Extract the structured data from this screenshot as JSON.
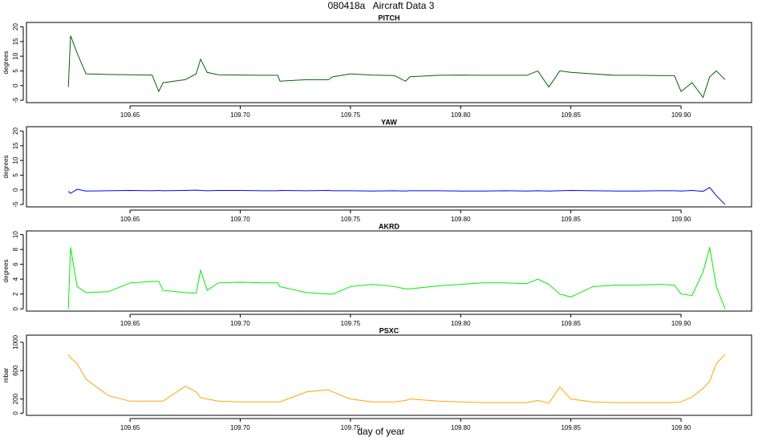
{
  "title": "080418a   Aircraft Data 3",
  "xlabel": "day of year",
  "chart_data": [
    {
      "type": "line",
      "title": "PITCH",
      "ylabel": "degrees",
      "color": "#006400",
      "xlim": [
        109.603,
        109.932
      ],
      "xticks": [
        109.65,
        {
          "value": 109.7,
          "label": "109.70"
        },
        109.75,
        {
          "value": 109.8,
          "label": "109.80"
        },
        109.85,
        {
          "value": 109.9,
          "label": "109.90"
        }
      ],
      "ylim": [
        -5.8,
        21.5
      ],
      "yticks": [
        -5,
        0,
        5,
        10,
        15,
        20
      ],
      "x": [
        109.622,
        109.623,
        109.626,
        109.63,
        109.64,
        109.65,
        109.66,
        109.663,
        109.665,
        109.675,
        109.68,
        109.682,
        109.685,
        109.69,
        109.7,
        109.71,
        109.717,
        109.718,
        109.73,
        109.74,
        109.742,
        109.75,
        109.76,
        109.77,
        109.775,
        109.777,
        109.79,
        109.8,
        109.81,
        109.82,
        109.83,
        109.835,
        109.84,
        109.845,
        109.85,
        109.86,
        109.87,
        109.88,
        109.89,
        109.897,
        109.9,
        109.905,
        109.91,
        109.913,
        109.916,
        109.92
      ],
      "values": [
        -0.5,
        17,
        11,
        4,
        3.8,
        3.7,
        3.6,
        -2,
        1,
        2,
        4,
        9,
        4.5,
        3.7,
        3.6,
        3.5,
        3.5,
        1.5,
        2,
        2,
        3,
        4,
        3.6,
        3.4,
        1.5,
        3,
        3.5,
        3.6,
        3.5,
        3.5,
        3.5,
        5,
        -0.5,
        5,
        4.5,
        4,
        3.5,
        3.5,
        3.4,
        3.4,
        -2,
        1,
        -4,
        3,
        5,
        2
      ]
    },
    {
      "type": "line",
      "title": "YAW",
      "ylabel": "degrees",
      "color": "#0000ff",
      "xlim": [
        109.603,
        109.932
      ],
      "xticks": [
        109.65,
        {
          "value": 109.7,
          "label": "109.70"
        },
        109.75,
        {
          "value": 109.8,
          "label": "109.80"
        },
        109.85,
        {
          "value": 109.9,
          "label": "109.90"
        }
      ],
      "ylim": [
        -5.8,
        21.5
      ],
      "yticks": [
        -5,
        0,
        5,
        10,
        15,
        20
      ],
      "x": [
        109.622,
        109.623,
        109.626,
        109.63,
        109.64,
        109.65,
        109.66,
        109.663,
        109.665,
        109.675,
        109.68,
        109.682,
        109.685,
        109.69,
        109.7,
        109.71,
        109.717,
        109.718,
        109.73,
        109.74,
        109.742,
        109.75,
        109.76,
        109.77,
        109.775,
        109.777,
        109.79,
        109.8,
        109.81,
        109.82,
        109.83,
        109.835,
        109.84,
        109.845,
        109.85,
        109.86,
        109.87,
        109.88,
        109.89,
        109.897,
        109.9,
        109.905,
        109.91,
        109.913,
        109.916,
        109.92
      ],
      "values": [
        -0.5,
        -1.2,
        0.2,
        -0.4,
        -0.3,
        -0.2,
        -0.3,
        -0.2,
        -0.3,
        -0.2,
        -0.1,
        -0.2,
        -0.3,
        -0.2,
        -0.2,
        -0.3,
        -0.3,
        -0.2,
        -0.3,
        -0.2,
        -0.3,
        -0.3,
        -0.4,
        -0.3,
        -0.4,
        -0.3,
        -0.3,
        -0.4,
        -0.4,
        -0.3,
        -0.4,
        -0.3,
        -0.4,
        -0.3,
        -0.2,
        -0.3,
        -0.4,
        -0.4,
        -0.3,
        -0.3,
        -0.4,
        -0.2,
        -0.5,
        0.8,
        -2,
        -5
      ]
    },
    {
      "type": "line",
      "title": "AKRD",
      "ylabel": "degrees",
      "color": "#00ee00",
      "xlim": [
        109.603,
        109.932
      ],
      "xticks": [
        109.65,
        {
          "value": 109.7,
          "label": "109.70"
        },
        109.75,
        {
          "value": 109.8,
          "label": "109.80"
        },
        109.85,
        {
          "value": 109.9,
          "label": "109.90"
        }
      ],
      "ylim": [
        -0.3,
        10.5
      ],
      "yticks": [
        0,
        2,
        4,
        6,
        8,
        10
      ],
      "x": [
        109.622,
        109.623,
        109.626,
        109.63,
        109.64,
        109.65,
        109.66,
        109.663,
        109.665,
        109.675,
        109.68,
        109.682,
        109.685,
        109.69,
        109.7,
        109.71,
        109.717,
        109.718,
        109.73,
        109.74,
        109.742,
        109.75,
        109.76,
        109.77,
        109.775,
        109.777,
        109.79,
        109.8,
        109.81,
        109.82,
        109.83,
        109.835,
        109.84,
        109.845,
        109.85,
        109.86,
        109.87,
        109.88,
        109.89,
        109.897,
        109.9,
        109.905,
        109.91,
        109.913,
        109.916,
        109.92
      ],
      "values": [
        0,
        8.3,
        3,
        2.2,
        2.3,
        3.5,
        3.7,
        3.7,
        2.5,
        2.2,
        2.1,
        5.2,
        2.5,
        3.5,
        3.6,
        3.5,
        3.5,
        3,
        2.2,
        2,
        2,
        3,
        3.3,
        3,
        2.7,
        2.7,
        3.1,
        3.3,
        3.5,
        3.5,
        3.4,
        4,
        3.3,
        2,
        1.6,
        3,
        3.2,
        3.2,
        3.3,
        3.2,
        2,
        1.8,
        5,
        8.3,
        3,
        0
      ]
    },
    {
      "type": "line",
      "title": "PSXC",
      "ylabel": "mbar",
      "color": "#ffa500",
      "xlim": [
        109.603,
        109.932
      ],
      "xticks": [
        109.65,
        {
          "value": 109.7,
          "label": "109.70"
        },
        109.75,
        {
          "value": 109.8,
          "label": "109.80"
        },
        109.85,
        {
          "value": 109.9,
          "label": "109.90"
        }
      ],
      "ylim": [
        -30,
        1100
      ],
      "yticks": [
        0,
        200,
        600,
        1000
      ],
      "x": [
        109.622,
        109.623,
        109.626,
        109.63,
        109.64,
        109.65,
        109.66,
        109.663,
        109.665,
        109.675,
        109.68,
        109.682,
        109.685,
        109.69,
        109.7,
        109.71,
        109.717,
        109.718,
        109.73,
        109.74,
        109.742,
        109.75,
        109.76,
        109.77,
        109.775,
        109.777,
        109.79,
        109.8,
        109.81,
        109.82,
        109.83,
        109.835,
        109.84,
        109.845,
        109.85,
        109.86,
        109.87,
        109.88,
        109.89,
        109.897,
        109.9,
        109.905,
        109.91,
        109.913,
        109.916,
        109.92
      ],
      "values": [
        830,
        780,
        700,
        480,
        250,
        170,
        170,
        170,
        170,
        380,
        300,
        220,
        200,
        170,
        160,
        160,
        160,
        160,
        300,
        330,
        300,
        200,
        160,
        160,
        180,
        200,
        170,
        160,
        150,
        150,
        150,
        180,
        140,
        370,
        200,
        160,
        150,
        150,
        150,
        150,
        160,
        230,
        350,
        450,
        700,
        830
      ]
    }
  ]
}
